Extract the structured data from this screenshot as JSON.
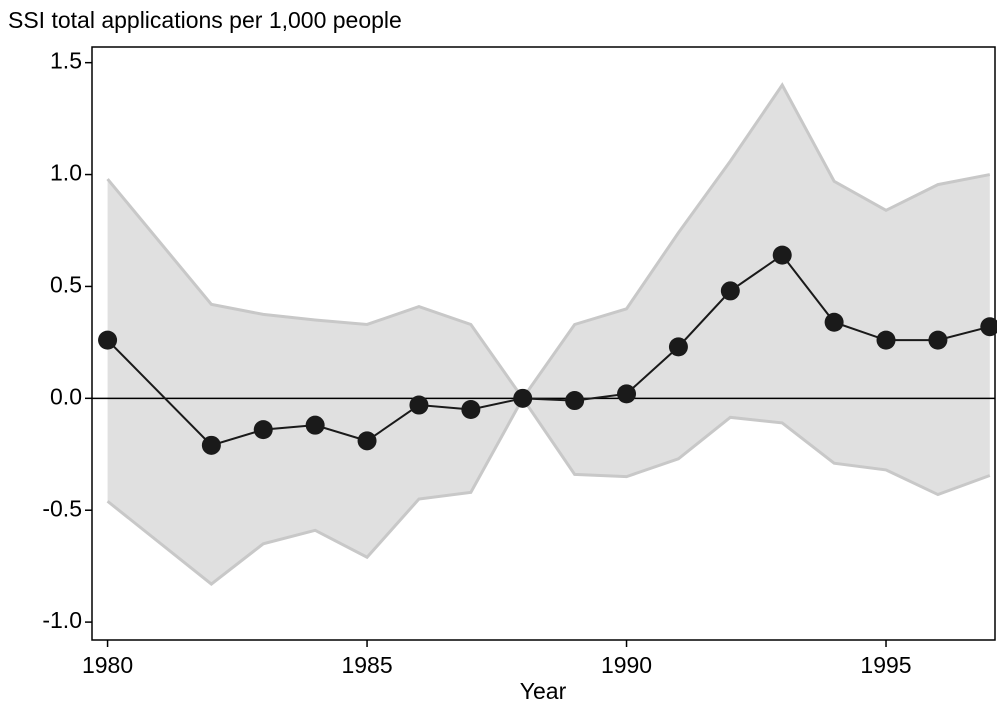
{
  "chart_data": {
    "type": "line",
    "title": "SSI total applications per 1,000 people",
    "x_label": "Year",
    "x": [
      1980,
      1982,
      1983,
      1984,
      1985,
      1986,
      1987,
      1988,
      1989,
      1990,
      1991,
      1992,
      1993,
      1994,
      1995,
      1996,
      1997
    ],
    "values": [
      0.26,
      -0.21,
      -0.14,
      -0.12,
      -0.19,
      -0.03,
      -0.05,
      0,
      -0.01,
      0.02,
      0.23,
      0.48,
      0.64,
      0.34,
      0.26,
      0.26,
      0.32
    ],
    "ci_upper": [
      0.98,
      0.42,
      0.375,
      0.35,
      0.33,
      0.41,
      0.33,
      0,
      0.33,
      0.4,
      0.74,
      1.06,
      1.4,
      0.97,
      0.84,
      0.955,
      1.0
    ],
    "ci_lower": [
      -0.46,
      -0.83,
      -0.65,
      -0.59,
      -0.71,
      -0.45,
      -0.42,
      0,
      -0.34,
      -0.35,
      -0.27,
      -0.085,
      -0.11,
      -0.29,
      -0.32,
      -0.43,
      -0.345
    ],
    "color": "#1a1a1a",
    "band_color": "#e0e0e0",
    "band_edge_color": "#c8c8c8",
    "xlim": [
      1979.7,
      1997.1
    ],
    "xticks": [
      1980,
      1985,
      1990,
      1995
    ],
    "ylim": [
      -1.08,
      1.57
    ],
    "yticks": [
      {
        "value": -1.0,
        "label": "-1.0"
      },
      -0.5,
      {
        "value": 0.0,
        "label": "0.0"
      },
      0.5,
      {
        "value": 1.0,
        "label": "1.0"
      },
      1.5
    ],
    "reference_line": 0
  }
}
